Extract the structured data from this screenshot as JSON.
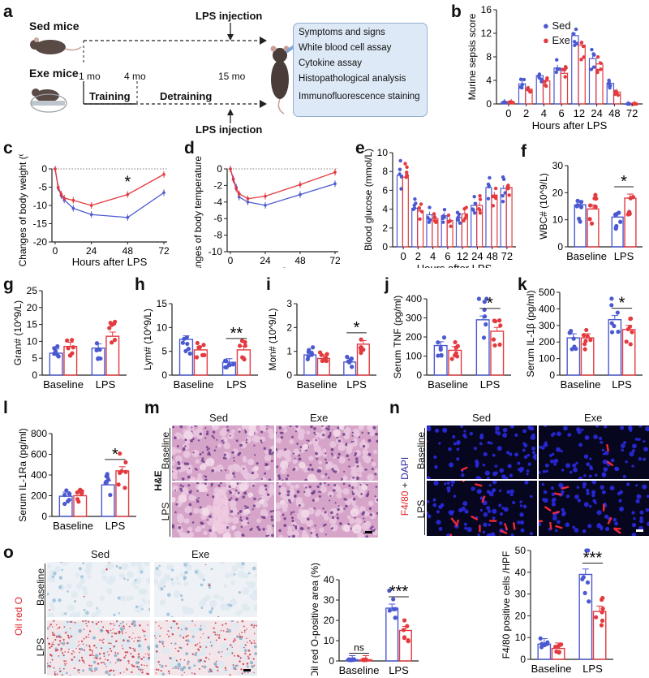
{
  "colors": {
    "sed": "#4b59d0",
    "exe": "#e33a3f",
    "he": "#d6a3c9",
    "oil": "#9fc3db",
    "if_bg": "#06061e"
  },
  "panel_letters": {
    "a": "a",
    "b": "b",
    "c": "c",
    "d": "d",
    "e": "e",
    "f": "f",
    "g": "g",
    "h": "h",
    "i": "i",
    "j": "j",
    "k": "k",
    "l": "l",
    "m": "m",
    "n": "n",
    "o": "o"
  },
  "schematic": {
    "sed_label": "Sed mice",
    "exe_label": "Exe mice",
    "lps_top": "LPS injection",
    "lps_bottom": "LPS injection",
    "t1": "1 mo",
    "t2": "4 mo",
    "t3": "15 mo",
    "training": "Training",
    "detraining": "Detraining",
    "assays": [
      "Symptoms and signs",
      "White blood cell assay",
      "Cytokine assay",
      "Histopathological analysis",
      "Immunofluorescence staining"
    ]
  },
  "chart_data": [
    {
      "id": "b",
      "type": "bar",
      "ylabel": "Murine sepsis score",
      "xlabel": "Hours after LPS",
      "categories": [
        "0",
        "2",
        "4",
        "6",
        "12",
        "24",
        "48",
        "72"
      ],
      "ylim": [
        0,
        16
      ],
      "series": [
        {
          "name": "Sed",
          "values": [
            0.3,
            3.4,
            4.8,
            6.1,
            11.6,
            7.7,
            3.5,
            0
          ]
        },
        {
          "name": "Exe",
          "values": [
            0.3,
            2.5,
            3.9,
            5.2,
            10.0,
            6.8,
            2.0,
            0
          ]
        }
      ]
    },
    {
      "id": "c",
      "type": "line",
      "ylabel": "Changes of body weight (%)",
      "xlabel": "Hours after LPS",
      "x": [
        0,
        2,
        4,
        6,
        12,
        24,
        48,
        72
      ],
      "xticks": [
        "0",
        "24",
        "48",
        "72"
      ],
      "yticks": [
        "0",
        "-5",
        "-10",
        "-15",
        "-20"
      ],
      "ylim": [
        -20,
        0
      ],
      "annotation": "*",
      "series": [
        {
          "name": "Sed",
          "values": [
            0,
            -5.2,
            -7.3,
            -8.5,
            -10.8,
            -12.5,
            -13.3,
            -6.5
          ]
        },
        {
          "name": "Exe",
          "values": [
            0,
            -5.0,
            -6.9,
            -8.0,
            -8.6,
            -10.0,
            -7.0,
            -1.5
          ]
        }
      ]
    },
    {
      "id": "d",
      "type": "line",
      "ylabel": "Changes of body temperature (°C)",
      "xlabel": "Hours after LPS",
      "x": [
        0,
        2,
        4,
        6,
        12,
        24,
        48,
        72
      ],
      "xticks": [
        "0",
        "24",
        "48",
        "72"
      ],
      "yticks": [
        "0",
        "-2",
        "-4",
        "-6",
        "-8",
        "-10"
      ],
      "ylim": [
        -10,
        0
      ],
      "series": [
        {
          "name": "Sed",
          "values": [
            0,
            -1.2,
            -2.2,
            -3.4,
            -4.0,
            -4.4,
            -3.1,
            -1.8
          ]
        },
        {
          "name": "Exe",
          "values": [
            0,
            -1.3,
            -2.4,
            -3.0,
            -3.6,
            -3.3,
            -1.9,
            -0.4
          ]
        }
      ]
    },
    {
      "id": "e",
      "type": "bar",
      "ylabel": "Blood glucose (mmol/L)",
      "xlabel": "Hours after LPS",
      "categories": [
        "0",
        "2",
        "4",
        "6",
        "12",
        "24",
        "48",
        "72"
      ],
      "ylim": [
        0,
        10
      ],
      "yticks": [
        "0",
        "2",
        "4",
        "6",
        "8",
        "10"
      ],
      "series": [
        {
          "name": "Sed",
          "values": [
            7.6,
            4.1,
            3.4,
            3.3,
            3.1,
            4.4,
            6.3,
            6.2
          ]
        },
        {
          "name": "Exe",
          "values": [
            7.4,
            3.8,
            3.0,
            2.8,
            3.5,
            4.4,
            5.5,
            6.3
          ]
        }
      ]
    },
    {
      "id": "f",
      "type": "bar",
      "ylabel": "WBC# (10^9/L)",
      "categories": [
        "Baseline",
        "LPS"
      ],
      "ylim": [
        0,
        30
      ],
      "yticks": [
        "0",
        "10",
        "20",
        "30"
      ],
      "annotation": "*",
      "series": [
        {
          "name": "Sed",
          "values": [
            15.5,
            11
          ]
        },
        {
          "name": "Exe",
          "values": [
            14,
            18
          ]
        }
      ]
    },
    {
      "id": "g",
      "type": "bar",
      "ylabel": "Gran# (10^9/L)",
      "categories": [
        "Baseline",
        "LPS"
      ],
      "ylim": [
        0,
        25
      ],
      "yticks": [
        "0",
        "5",
        "10",
        "15",
        "20",
        "25"
      ],
      "series": [
        {
          "name": "Sed",
          "values": [
            6.5,
            8
          ]
        },
        {
          "name": "Exe",
          "values": [
            8.5,
            11.5
          ]
        }
      ]
    },
    {
      "id": "h",
      "type": "bar",
      "ylabel": "Lym# (10^9/L)",
      "categories": [
        "Baseline",
        "LPS"
      ],
      "ylim": [
        0,
        15
      ],
      "yticks": [
        "0",
        "5",
        "10",
        "15"
      ],
      "annotation": "**",
      "series": [
        {
          "name": "Sed",
          "values": [
            7.5,
            2.7
          ]
        },
        {
          "name": "Exe",
          "values": [
            5.3,
            5.3
          ]
        }
      ]
    },
    {
      "id": "i",
      "type": "bar",
      "ylabel": "Mon# (10^9/L)",
      "categories": [
        "Baseline",
        "LPS"
      ],
      "ylim": [
        0,
        3
      ],
      "yticks": [
        "0",
        "1",
        "2",
        "3"
      ],
      "annotation": "*",
      "series": [
        {
          "name": "Sed",
          "values": [
            0.85,
            0.55
          ]
        },
        {
          "name": "Exe",
          "values": [
            0.7,
            1.3
          ]
        }
      ]
    },
    {
      "id": "j",
      "type": "bar",
      "ylabel": "Serum TNF (pg/ml)",
      "categories": [
        "Baseline",
        "LPS"
      ],
      "ylim": [
        0,
        400
      ],
      "yticks": [
        "0",
        "100",
        "200",
        "300",
        "400"
      ],
      "annotation": "*",
      "series": [
        {
          "name": "Sed",
          "values": [
            155,
            290
          ]
        },
        {
          "name": "Exe",
          "values": [
            130,
            230
          ]
        }
      ]
    },
    {
      "id": "k",
      "type": "bar",
      "ylabel": "Serum IL-1β (pg/ml)",
      "categories": [
        "Baseline",
        "LPS"
      ],
      "ylim": [
        0,
        500
      ],
      "yticks": [
        "0",
        "100",
        "200",
        "300",
        "400",
        "500"
      ],
      "annotation": "*",
      "series": [
        {
          "name": "Sed",
          "values": [
            225,
            335
          ]
        },
        {
          "name": "Exe",
          "values": [
            225,
            275
          ]
        }
      ]
    },
    {
      "id": "l",
      "type": "bar",
      "ylabel": "Serum IL-1Ra (pg/ml)",
      "categories": [
        "Baseline",
        "LPS"
      ],
      "ylim": [
        0,
        800
      ],
      "yticks": [
        "0",
        "200",
        "400",
        "600",
        "800"
      ],
      "annotation": "*",
      "series": [
        {
          "name": "Sed",
          "values": [
            195,
            305
          ]
        },
        {
          "name": "Exe",
          "values": [
            200,
            440
          ]
        }
      ]
    },
    {
      "id": "o1",
      "type": "bar",
      "ylabel": "Oil red O-positive area (%)",
      "categories": [
        "Baseline",
        "LPS"
      ],
      "ylim": [
        0,
        40
      ],
      "yticks": [
        "0",
        "10",
        "20",
        "30",
        "40"
      ],
      "annotations": [
        "ns",
        "***"
      ],
      "series": [
        {
          "name": "Sed",
          "values": [
            0.6,
            26
          ]
        },
        {
          "name": "Exe",
          "values": [
            0.6,
            15
          ]
        }
      ]
    },
    {
      "id": "o2",
      "type": "bar",
      "ylabel": "F4/80 positive cells /HPF",
      "categories": [
        "Baseline",
        "LPS"
      ],
      "ylim": [
        0,
        50
      ],
      "yticks": [
        "0",
        "10",
        "20",
        "30",
        "40",
        "50"
      ],
      "annotation": "***",
      "series": [
        {
          "name": "Sed",
          "values": [
            7,
            39
          ]
        },
        {
          "name": "Exe",
          "values": [
            5,
            22
          ]
        }
      ]
    }
  ],
  "legend": {
    "sed": "Sed",
    "exe": "Exe"
  },
  "micro": {
    "sed": "Sed",
    "exe": "Exe",
    "baseline": "Baseline",
    "lps": "LPS",
    "he_label": "H&E",
    "if_f480": "F4/80",
    "if_plus": " + ",
    "if_dapi": "DAPI",
    "oil_label": "Oil red O"
  }
}
